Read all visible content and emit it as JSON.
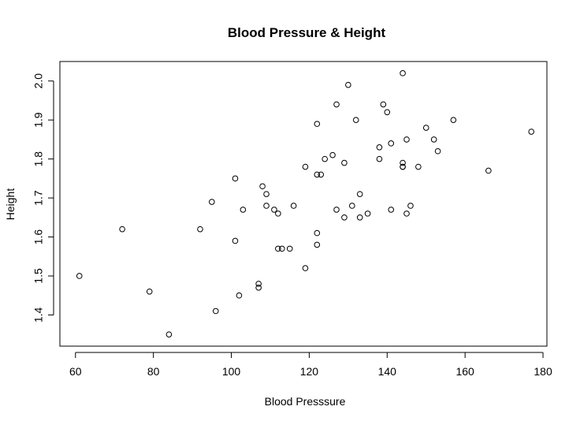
{
  "chart_data": {
    "type": "scatter",
    "title": "Blood Pressure & Height",
    "xlabel": "Blood Presssure",
    "ylabel": "Height",
    "xlim": [
      56,
      181
    ],
    "ylim": [
      1.32,
      2.05
    ],
    "x_ticks": [
      60,
      80,
      100,
      120,
      140,
      160,
      180
    ],
    "x_tick_labels": [
      "60",
      "80",
      "100",
      "120",
      "140",
      "160",
      "180"
    ],
    "y_ticks": [
      1.4,
      1.5,
      1.6,
      1.7,
      1.8,
      1.9,
      2.0
    ],
    "y_tick_labels": [
      "1.4",
      "1.5",
      "1.6",
      "1.7",
      "1.8",
      "1.9",
      "2.0"
    ],
    "grid": false,
    "legend": "none",
    "series": [
      {
        "x": [
          61,
          72,
          79,
          84,
          92,
          95,
          96,
          101,
          101,
          102,
          103,
          107,
          107,
          108,
          109,
          109,
          111,
          112,
          112,
          113,
          115,
          116,
          119,
          119,
          122,
          122,
          122,
          122,
          123,
          124,
          126,
          127,
          127,
          129,
          129,
          130,
          131,
          132,
          133,
          133,
          135,
          138,
          138,
          139,
          140,
          141,
          141,
          144,
          144,
          144,
          144,
          145,
          145,
          146,
          148,
          150,
          152,
          153,
          157,
          166,
          177
        ],
        "y": [
          1.5,
          1.62,
          1.46,
          1.35,
          1.62,
          1.69,
          1.41,
          1.75,
          1.59,
          1.45,
          1.67,
          1.48,
          1.47,
          1.73,
          1.71,
          1.68,
          1.67,
          1.66,
          1.57,
          1.57,
          1.57,
          1.68,
          1.78,
          1.52,
          1.89,
          1.76,
          1.61,
          1.58,
          1.76,
          1.8,
          1.81,
          1.94,
          1.67,
          1.79,
          1.65,
          1.99,
          1.68,
          1.9,
          1.71,
          1.65,
          1.66,
          1.83,
          1.8,
          1.94,
          1.92,
          1.84,
          1.67,
          2.02,
          1.79,
          1.78,
          1.78,
          1.85,
          1.66,
          1.68,
          1.78,
          1.88,
          1.85,
          1.82,
          1.9,
          1.77,
          1.87
        ]
      }
    ]
  }
}
